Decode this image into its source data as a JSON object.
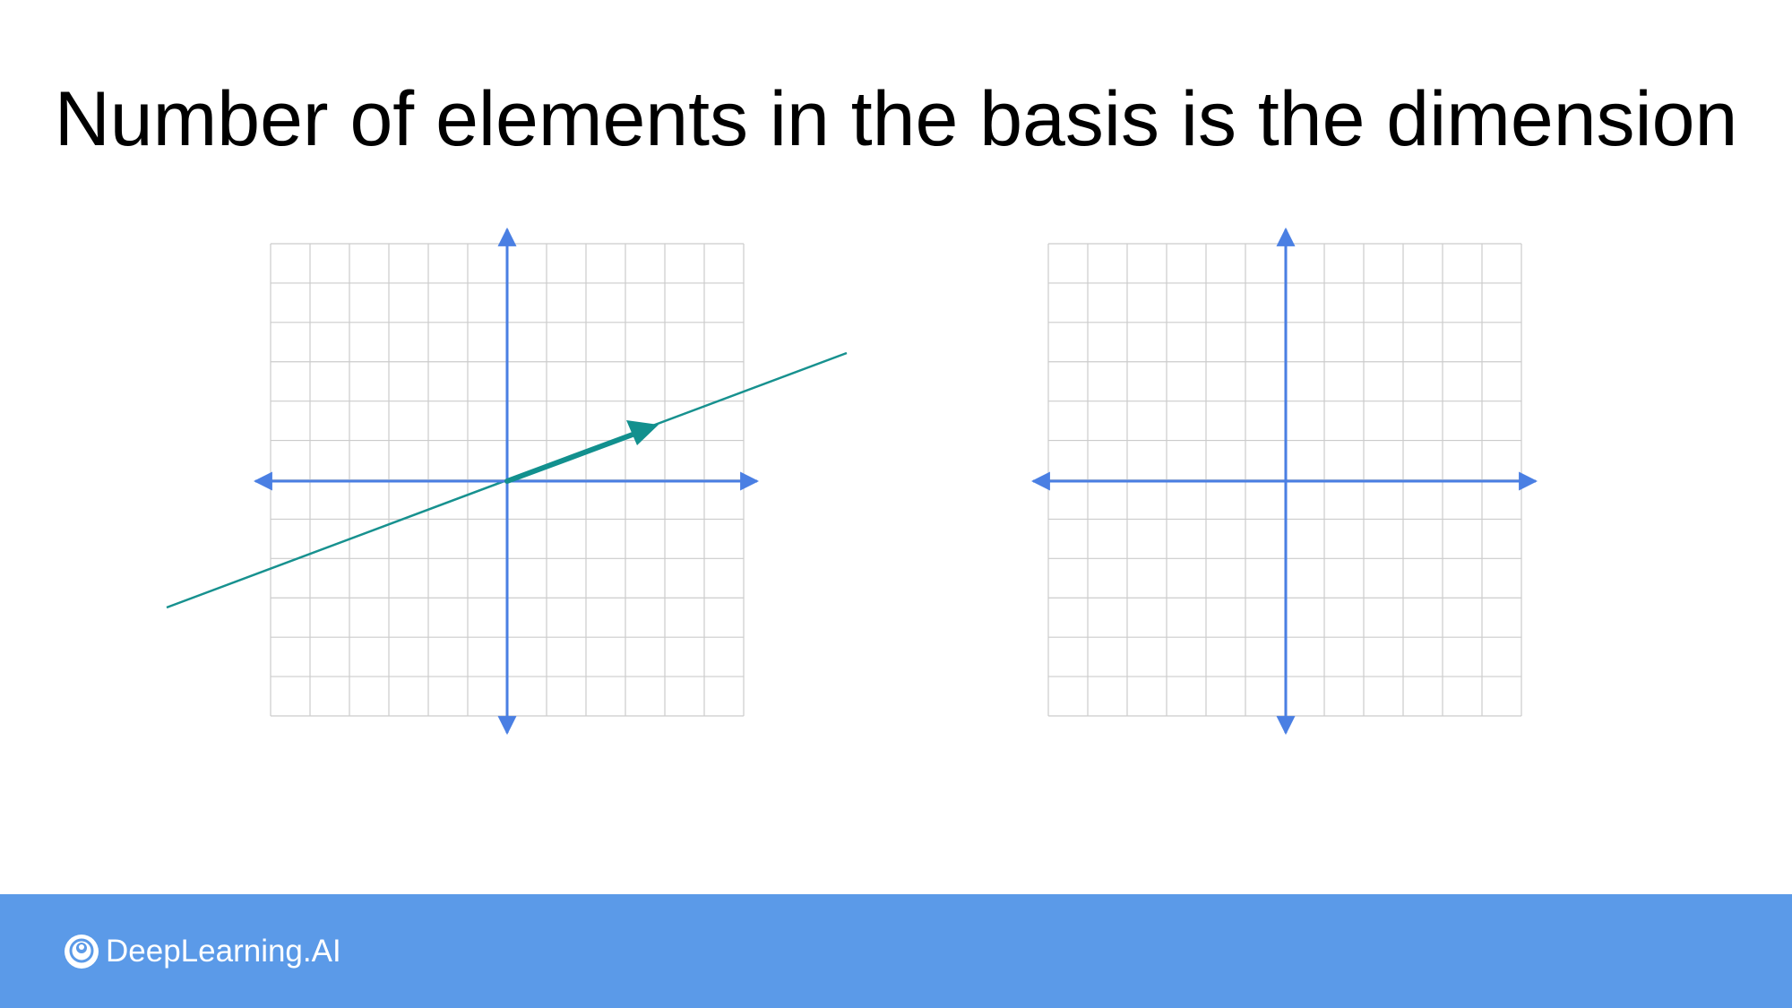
{
  "slide": {
    "title": "Number of elements in the basis is the dimension"
  },
  "colors": {
    "axis": "#4a7fe3",
    "grid": "#cccccc",
    "span_line": "#17918f",
    "basis_vector": "#12908e",
    "footer": "#5b9ae8"
  },
  "footer": {
    "brand": "DeepLearning.AI",
    "logo_icon": "deeplearning-ai-logo-icon"
  }
}
